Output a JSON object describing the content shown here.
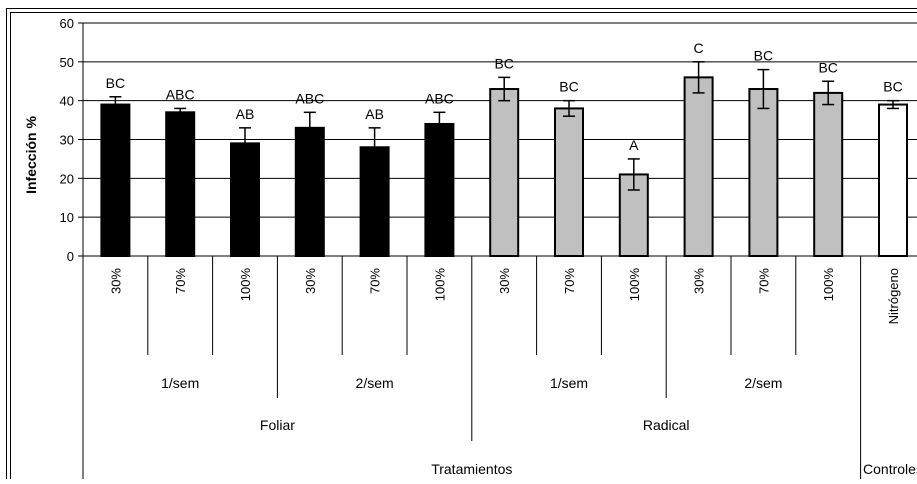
{
  "chart_data": {
    "type": "bar",
    "ylabel": "Infección %",
    "ylim": [
      0,
      60
    ],
    "yticks": [
      0,
      10,
      20,
      30,
      40,
      50,
      60
    ],
    "grid": true,
    "categories": [
      "30%",
      "70%",
      "100%",
      "30%",
      "70%",
      "100%",
      "30%",
      "70%",
      "100%",
      "30%",
      "70%",
      "100%",
      "Nitrógeno"
    ],
    "values": [
      39,
      37,
      29,
      33,
      28,
      34,
      43,
      38,
      21,
      46,
      43,
      42,
      39
    ],
    "errors": [
      2,
      1,
      4,
      4,
      5,
      3,
      3,
      2,
      4,
      4,
      5,
      3,
      1
    ],
    "letters": [
      "BC",
      "ABC",
      "AB",
      "ABC",
      "AB",
      "ABC",
      "BC",
      "BC",
      "A",
      "C",
      "BC",
      "BC",
      "BC"
    ],
    "bar_colors": [
      "#000000",
      "#000000",
      "#000000",
      "#000000",
      "#000000",
      "#000000",
      "#c0c0c0",
      "#c0c0c0",
      "#c0c0c0",
      "#c0c0c0",
      "#c0c0c0",
      "#c0c0c0",
      "#ffffff"
    ],
    "group_level1": [
      {
        "label": "1/sem",
        "span": [
          0,
          2
        ]
      },
      {
        "label": "2/sem",
        "span": [
          3,
          5
        ]
      },
      {
        "label": "1/sem",
        "span": [
          6,
          8
        ]
      },
      {
        "label": "2/sem",
        "span": [
          9,
          11
        ]
      }
    ],
    "group_level2": [
      {
        "label": "Foliar",
        "span": [
          0,
          5
        ]
      },
      {
        "label": "Radical",
        "span": [
          6,
          11
        ]
      }
    ],
    "group_level3": [
      {
        "label": "Tratamientos",
        "span": [
          0,
          11
        ]
      },
      {
        "label": "Controles",
        "span": [
          12,
          12
        ]
      }
    ]
  }
}
